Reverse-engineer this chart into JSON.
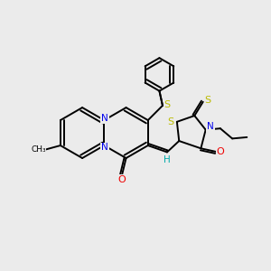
{
  "bg_color": "#ebebeb",
  "atom_colors": {
    "C": "#000000",
    "N": "#0000ee",
    "O": "#ee0000",
    "S": "#bbbb00",
    "H": "#00aaaa"
  },
  "bond_color": "#000000",
  "bond_width": 1.4,
  "figsize": [
    3.0,
    3.0
  ],
  "dpi": 100,
  "xlim": [
    0,
    10
  ],
  "ylim": [
    0,
    10
  ]
}
